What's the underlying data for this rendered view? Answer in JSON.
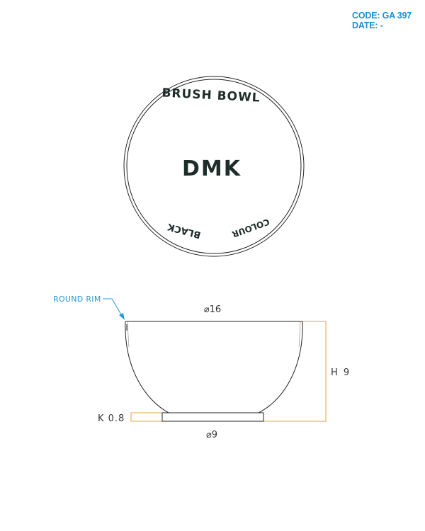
{
  "header": {
    "code": "CODE: GA 397",
    "date": "DATE: -"
  },
  "top_view": {
    "top_text": "BRUSH BOWL",
    "center_text": "DMK",
    "bottom_left_text": "BLACK",
    "bottom_right_text": "COLOUR"
  },
  "side_view": {
    "callout": "ROUND RIM",
    "top_diameter": "⌀16",
    "height": "H 9",
    "foot": "K 0.8",
    "bottom_diameter": "⌀9"
  },
  "colors": {
    "accent": "#1a8fd6",
    "dimension_line": "#e0a24a",
    "outline": "#222222"
  }
}
